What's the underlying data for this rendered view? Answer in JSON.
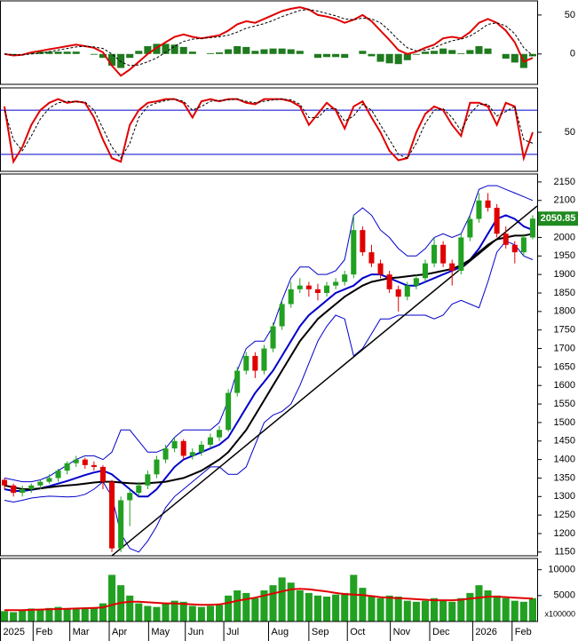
{
  "chart_data": [
    {
      "type": "macd",
      "ylim": [
        -39,
        67
      ],
      "yticks": [
        0,
        50
      ],
      "series": [
        {
          "color": "#e00000",
          "width": 2,
          "values": [
            0,
            -2,
            -1,
            2,
            4,
            6,
            8,
            10,
            12,
            10,
            8,
            2,
            -15,
            -28,
            -20,
            -10,
            0,
            8,
            15,
            22,
            25,
            22,
            20,
            22,
            24,
            30,
            38,
            42,
            40,
            45,
            50,
            55,
            58,
            60,
            57,
            50,
            48,
            45,
            40,
            44,
            50,
            42,
            30,
            18,
            5,
            0,
            3,
            8,
            12,
            20,
            22,
            20,
            28,
            40,
            45,
            40,
            30,
            15,
            -10,
            -5
          ]
        },
        {
          "color": "#000000",
          "width": 1,
          "dashed": true,
          "values": [
            0,
            -1,
            -1,
            0,
            1,
            3,
            5,
            7,
            9,
            10,
            9,
            7,
            0,
            -10,
            -15,
            -14,
            -10,
            -5,
            2,
            10,
            16,
            19,
            20,
            21,
            22,
            24,
            28,
            33,
            36,
            39,
            43,
            48,
            52,
            56,
            57,
            55,
            52,
            49,
            45,
            44,
            46,
            45,
            40,
            30,
            18,
            8,
            4,
            5,
            8,
            13,
            17,
            19,
            23,
            30,
            38,
            40,
            36,
            26,
            8,
            -2
          ]
        }
      ],
      "histogram": {
        "color": "#1f7a1f",
        "values": [
          0,
          -1,
          0,
          2,
          3,
          3,
          3,
          3,
          3,
          0,
          -1,
          -5,
          -15,
          -18,
          -5,
          4,
          10,
          13,
          13,
          12,
          9,
          3,
          0,
          1,
          2,
          6,
          10,
          9,
          4,
          6,
          7,
          7,
          6,
          4,
          0,
          -5,
          -4,
          -4,
          -5,
          0,
          4,
          -3,
          -10,
          -12,
          -13,
          -8,
          -1,
          3,
          4,
          7,
          5,
          1,
          5,
          10,
          7,
          0,
          -6,
          -11,
          -18,
          -3
        ]
      }
    },
    {
      "type": "stochastic",
      "ylim": [
        -3,
        109
      ],
      "yticks": [
        50
      ],
      "reference_lines": [
        80,
        20
      ],
      "reference_color": "#0000cc",
      "series": [
        {
          "color": "#e00000",
          "width": 2,
          "values": [
            85,
            10,
            30,
            60,
            80,
            90,
            95,
            90,
            92,
            90,
            70,
            40,
            15,
            10,
            60,
            80,
            90,
            92,
            95,
            95,
            90,
            70,
            92,
            95,
            92,
            95,
            95,
            90,
            88,
            95,
            95,
            95,
            92,
            85,
            60,
            75,
            90,
            80,
            55,
            85,
            92,
            70,
            50,
            25,
            12,
            15,
            50,
            75,
            85,
            80,
            60,
            45,
            90,
            90,
            85,
            60,
            90,
            85,
            15,
            50
          ]
        },
        {
          "color": "#000000",
          "width": 1,
          "dashed": true,
          "values": [
            80,
            40,
            25,
            45,
            68,
            83,
            90,
            92,
            91,
            91,
            80,
            55,
            30,
            15,
            35,
            70,
            85,
            90,
            93,
            95,
            92,
            80,
            85,
            92,
            93,
            94,
            95,
            92,
            90,
            92,
            94,
            95,
            94,
            88,
            70,
            70,
            82,
            82,
            65,
            72,
            88,
            80,
            60,
            40,
            20,
            15,
            35,
            62,
            80,
            82,
            70,
            52,
            75,
            88,
            88,
            72,
            78,
            85,
            40,
            35
          ]
        }
      ]
    },
    {
      "type": "candlestick",
      "ylim": [
        1140,
        2169
      ],
      "yticks": [
        1150,
        1200,
        1250,
        1300,
        1350,
        1400,
        1450,
        1500,
        1550,
        1600,
        1650,
        1700,
        1750,
        1800,
        1850,
        1900,
        1950,
        2000,
        2050,
        2100,
        2150
      ],
      "up_color": "#22a022",
      "down_color": "#e00000",
      "last_color": "#1f8a1f",
      "candles": [
        [
          1345,
          1350,
          1320,
          1330
        ],
        [
          1330,
          1335,
          1300,
          1310
        ],
        [
          1310,
          1330,
          1300,
          1320
        ],
        [
          1320,
          1335,
          1310,
          1330
        ],
        [
          1330,
          1345,
          1320,
          1340
        ],
        [
          1340,
          1360,
          1335,
          1350
        ],
        [
          1350,
          1375,
          1340,
          1370
        ],
        [
          1370,
          1395,
          1360,
          1390
        ],
        [
          1390,
          1410,
          1380,
          1400
        ],
        [
          1400,
          1405,
          1375,
          1385
        ],
        [
          1385,
          1395,
          1370,
          1380
        ],
        [
          1380,
          1385,
          1320,
          1340
        ],
        [
          1340,
          1345,
          1150,
          1160
        ],
        [
          1160,
          1300,
          1150,
          1290
        ],
        [
          1290,
          1320,
          1220,
          1310
        ],
        [
          1310,
          1340,
          1300,
          1330
        ],
        [
          1330,
          1370,
          1320,
          1360
        ],
        [
          1360,
          1410,
          1350,
          1400
        ],
        [
          1400,
          1440,
          1390,
          1430
        ],
        [
          1430,
          1460,
          1420,
          1450
        ],
        [
          1450,
          1455,
          1400,
          1410
        ],
        [
          1410,
          1430,
          1400,
          1420
        ],
        [
          1420,
          1450,
          1410,
          1440
        ],
        [
          1440,
          1470,
          1430,
          1460
        ],
        [
          1460,
          1490,
          1450,
          1480
        ],
        [
          1480,
          1590,
          1475,
          1580
        ],
        [
          1580,
          1650,
          1570,
          1640
        ],
        [
          1640,
          1690,
          1630,
          1680
        ],
        [
          1680,
          1690,
          1620,
          1640
        ],
        [
          1640,
          1710,
          1630,
          1700
        ],
        [
          1700,
          1770,
          1690,
          1760
        ],
        [
          1760,
          1830,
          1750,
          1820
        ],
        [
          1820,
          1880,
          1810,
          1860
        ],
        [
          1860,
          1890,
          1850,
          1870
        ],
        [
          1870,
          1880,
          1840,
          1860
        ],
        [
          1860,
          1875,
          1830,
          1850
        ],
        [
          1850,
          1880,
          1840,
          1870
        ],
        [
          1870,
          1890,
          1860,
          1880
        ],
        [
          1880,
          1910,
          1870,
          1900
        ],
        [
          1900,
          2060,
          1890,
          2020
        ],
        [
          2020,
          2030,
          1950,
          1960
        ],
        [
          1960,
          1980,
          1920,
          1930
        ],
        [
          1930,
          1940,
          1890,
          1900
        ],
        [
          1900,
          1910,
          1850,
          1860
        ],
        [
          1860,
          1870,
          1800,
          1840
        ],
        [
          1840,
          1880,
          1830,
          1870
        ],
        [
          1870,
          1900,
          1860,
          1890
        ],
        [
          1890,
          1940,
          1880,
          1930
        ],
        [
          1930,
          2000,
          1920,
          1980
        ],
        [
          1980,
          1990,
          1920,
          1930
        ],
        [
          1930,
          1940,
          1870,
          1910
        ],
        [
          1910,
          2010,
          1900,
          2000
        ],
        [
          2000,
          2060,
          1990,
          2050
        ],
        [
          2050,
          2120,
          2040,
          2100
        ],
        [
          2100,
          2120,
          2070,
          2080
        ],
        [
          2080,
          2090,
          2000,
          2010
        ],
        [
          2010,
          2030,
          1970,
          1980
        ],
        [
          1980,
          1990,
          1930,
          1960
        ],
        [
          1960,
          2010,
          1950,
          2000
        ],
        [
          2000,
          2060,
          1995,
          2050.85
        ]
      ],
      "lines": [
        {
          "color": "#0000cc",
          "width": 1,
          "values": [
            1350,
            1345,
            1340,
            1340,
            1345,
            1355,
            1370,
            1385,
            1400,
            1410,
            1410,
            1400,
            1420,
            1480,
            1480,
            1450,
            1420,
            1420,
            1430,
            1460,
            1480,
            1480,
            1480,
            1480,
            1500,
            1560,
            1640,
            1700,
            1720,
            1720,
            1760,
            1830,
            1890,
            1920,
            1920,
            1900,
            1900,
            1910,
            1940,
            2060,
            2080,
            2060,
            2020,
            2000,
            1970,
            1950,
            1950,
            1970,
            2000,
            2010,
            2000,
            2010,
            2060,
            2130,
            2140,
            2140,
            2130,
            2120,
            2110,
            2100
          ]
        },
        {
          "color": "#0000cc",
          "width": 1,
          "values": [
            1290,
            1285,
            1290,
            1296,
            1299,
            1301,
            1300,
            1299,
            1300,
            1306,
            1320,
            1340,
            1300,
            1200,
            1160,
            1150,
            1180,
            1220,
            1270,
            1300,
            1320,
            1340,
            1360,
            1380,
            1380,
            1360,
            1360,
            1380,
            1440,
            1500,
            1520,
            1530,
            1550,
            1600,
            1660,
            1720,
            1760,
            1790,
            1780,
            1680,
            1700,
            1740,
            1780,
            1780,
            1790,
            1790,
            1790,
            1790,
            1780,
            1790,
            1820,
            1830,
            1820,
            1810,
            1880,
            1960,
            1990,
            1980,
            1950,
            1940
          ]
        },
        {
          "color": "#0000cc",
          "width": 2,
          "values": [
            1320,
            1315,
            1315,
            1318,
            1322,
            1328,
            1335,
            1342,
            1350,
            1358,
            1365,
            1370,
            1360,
            1340,
            1320,
            1300,
            1300,
            1320,
            1350,
            1380,
            1400,
            1410,
            1420,
            1430,
            1440,
            1460,
            1500,
            1540,
            1580,
            1610,
            1640,
            1680,
            1720,
            1760,
            1790,
            1810,
            1830,
            1850,
            1860,
            1870,
            1890,
            1900,
            1900,
            1890,
            1880,
            1870,
            1870,
            1880,
            1890,
            1900,
            1910,
            1920,
            1940,
            1970,
            2010,
            2050,
            2060,
            2050,
            2030,
            2020
          ]
        },
        {
          "color": "#000000",
          "width": 2,
          "values": [
            1330,
            1325,
            1320,
            1320,
            1322,
            1325,
            1328,
            1330,
            1332,
            1335,
            1338,
            1340,
            1340,
            1338,
            1336,
            1335,
            1336,
            1338,
            1340,
            1345,
            1350,
            1360,
            1370,
            1385,
            1400,
            1420,
            1450,
            1480,
            1520,
            1560,
            1600,
            1640,
            1680,
            1720,
            1750,
            1780,
            1800,
            1820,
            1840,
            1855,
            1870,
            1880,
            1885,
            1890,
            1892,
            1895,
            1898,
            1900,
            1905,
            1910,
            1915,
            1925,
            1940,
            1960,
            1980,
            1995,
            2000,
            2005,
            2005,
            2010
          ]
        }
      ],
      "trendline": {
        "color": "#000000",
        "x": [
          12,
          59.5
        ],
        "y": [
          1140,
          2085
        ]
      }
    },
    {
      "type": "bar",
      "ylim": [
        0,
        12000
      ],
      "yticks": [
        5000,
        10000
      ],
      "unit_label": "x100000",
      "color": "#22a022",
      "values": [
        2000,
        1800,
        2200,
        2500,
        2300,
        2600,
        2800,
        2400,
        2500,
        2700,
        2600,
        3500,
        9000,
        7000,
        5000,
        3500,
        3000,
        2800,
        3500,
        4000,
        3800,
        3000,
        2800,
        3000,
        3200,
        5000,
        6000,
        5500,
        4500,
        6000,
        7000,
        8500,
        7500,
        6000,
        5500,
        5000,
        4800,
        5200,
        5500,
        9000,
        6500,
        5000,
        4500,
        5000,
        4800,
        4000,
        3800,
        4000,
        4500,
        4200,
        3800,
        4500,
        5500,
        7000,
        6000,
        5000,
        4500,
        4000,
        3800,
        4500
      ],
      "ma": {
        "color": "#e00000",
        "values": [
          2200,
          2200,
          2200,
          2250,
          2300,
          2350,
          2400,
          2450,
          2500,
          2550,
          2600,
          2700,
          3200,
          3600,
          3800,
          3800,
          3700,
          3600,
          3500,
          3500,
          3400,
          3300,
          3200,
          3200,
          3300,
          3600,
          4000,
          4300,
          4600,
          5000,
          5400,
          5800,
          6200,
          6300,
          6200,
          6000,
          5800,
          5500,
          5300,
          5200,
          5100,
          4900,
          4700,
          4600,
          4500,
          4400,
          4300,
          4200,
          4100,
          4100,
          4100,
          4200,
          4400,
          4600,
          4800,
          4800,
          4700,
          4600,
          4500,
          4400
        ]
      },
      "xlim": [
        -0.5,
        59.5
      ],
      "xticks": [
        {
          "value": -0.5,
          "label": "2025"
        },
        {
          "value": 3.2,
          "label": "Feb"
        },
        {
          "value": 7.3,
          "label": "Mar"
        },
        {
          "value": 11.7,
          "label": "Apr"
        },
        {
          "value": 16.1,
          "label": "May"
        },
        {
          "value": 20.2,
          "label": "Jun"
        },
        {
          "value": 24.5,
          "label": "Jul"
        },
        {
          "value": 29.5,
          "label": "Aug"
        },
        {
          "value": 34,
          "label": "Sep"
        },
        {
          "value": 38.3,
          "label": "Oct"
        },
        {
          "value": 43.1,
          "label": "Nov"
        },
        {
          "value": 47.5,
          "label": "Dec"
        },
        {
          "value": 52.3,
          "label": "2026"
        },
        {
          "value": 56.7,
          "label": "Feb"
        }
      ]
    }
  ]
}
